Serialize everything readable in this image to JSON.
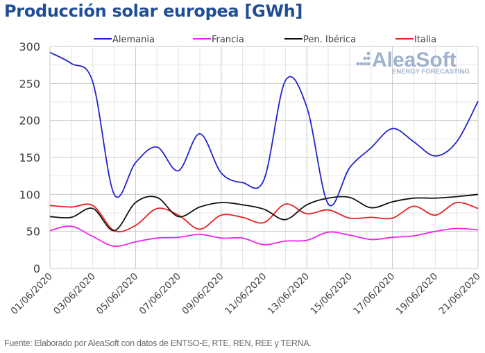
{
  "chart_data": {
    "type": "line",
    "title": "Producción solar europea [GWh]",
    "xlabel": "",
    "ylabel": "",
    "ylim": [
      0,
      300
    ],
    "yticks": [
      0,
      50,
      100,
      150,
      200,
      250,
      300
    ],
    "grid": true,
    "legend_position": "top",
    "x": [
      "01/06/2020",
      "02/06/2020",
      "03/06/2020",
      "04/06/2020",
      "05/06/2020",
      "06/06/2020",
      "07/06/2020",
      "08/06/2020",
      "09/06/2020",
      "10/06/2020",
      "11/06/2020",
      "12/06/2020",
      "13/06/2020",
      "14/06/2020",
      "15/06/2020",
      "16/06/2020",
      "17/06/2020",
      "18/06/2020",
      "19/06/2020",
      "20/06/2020",
      "21/06/2020"
    ],
    "xtick_labels": [
      "01/06/2020",
      "03/06/2020",
      "05/06/2020",
      "07/06/2020",
      "09/06/2020",
      "11/06/2020",
      "13/06/2020",
      "15/06/2020",
      "17/06/2020",
      "19/06/2020",
      "21/06/2020"
    ],
    "series": [
      {
        "name": "Alemania",
        "color": "#2222cc",
        "values": [
          292,
          277,
          252,
          100,
          143,
          164,
          132,
          182,
          129,
          116,
          120,
          254,
          218,
          87,
          136,
          163,
          189,
          171,
          152,
          171,
          226
        ]
      },
      {
        "name": "Francia",
        "color": "#ee22ee",
        "values": [
          51,
          57,
          43,
          30,
          36,
          41,
          42,
          46,
          41,
          41,
          32,
          37,
          38,
          49,
          45,
          39,
          42,
          44,
          50,
          54,
          52
        ]
      },
      {
        "name": "Pen. Ibérica",
        "color": "#111111",
        "values": [
          70,
          69,
          81,
          51,
          89,
          96,
          70,
          83,
          89,
          86,
          80,
          66,
          86,
          95,
          96,
          82,
          90,
          95,
          95,
          97,
          100
        ]
      },
      {
        "name": "Italia",
        "color": "#e82020",
        "values": [
          85,
          83,
          85,
          51,
          58,
          81,
          72,
          53,
          72,
          69,
          62,
          87,
          74,
          79,
          68,
          69,
          68,
          84,
          72,
          89,
          81
        ]
      }
    ]
  },
  "watermark": {
    "brand": "AleaSoft",
    "tagline": "ENERGY FORECASTING"
  },
  "footer": "Fuente: Elaborado por AleaSoft con datos de ENTSO-E, RTE, REN, REE y TERNA."
}
